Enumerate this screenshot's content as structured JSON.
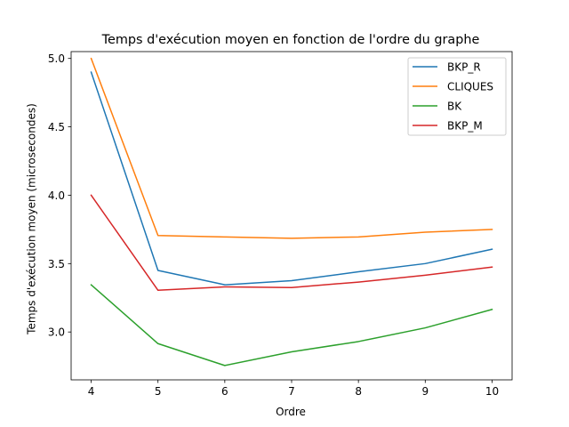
{
  "chart_data": {
    "type": "line",
    "title": "Temps d'exécution moyen en fonction de l'ordre du graphe",
    "xlabel": "Ordre",
    "ylabel": "Temps d'exécution moyen (microsecondes)",
    "x": [
      4,
      5,
      6,
      7,
      8,
      9,
      10
    ],
    "xlim": [
      3.7,
      10.3
    ],
    "ylim": [
      2.65,
      5.05
    ],
    "xticks": [
      4,
      5,
      6,
      7,
      8,
      9,
      10
    ],
    "yticks": [
      3.0,
      3.5,
      4.0,
      4.5,
      5.0
    ],
    "ytick_labels": [
      "3.0",
      "3.5",
      "4.0",
      "4.5",
      "5.0"
    ],
    "grid": false,
    "legend_position": "top-right",
    "series": [
      {
        "name": "BKP_R",
        "color": "#1f77b4",
        "values": [
          4.9,
          3.45,
          3.345,
          3.375,
          3.44,
          3.5,
          3.605
        ]
      },
      {
        "name": "CLIQUES",
        "color": "#ff7f0e",
        "values": [
          5.0,
          3.705,
          3.695,
          3.685,
          3.695,
          3.73,
          3.75
        ]
      },
      {
        "name": "BK",
        "color": "#2ca02c",
        "values": [
          3.345,
          2.915,
          2.755,
          2.855,
          2.93,
          3.03,
          3.165
        ]
      },
      {
        "name": "BKP_M",
        "color": "#d62728",
        "values": [
          4.0,
          3.305,
          3.33,
          3.325,
          3.365,
          3.415,
          3.475
        ]
      }
    ]
  }
}
